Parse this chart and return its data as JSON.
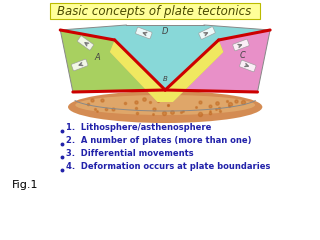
{
  "title": "Basic concepts of plate tectonics",
  "title_color": "#4a4a00",
  "title_bg": "#ffff99",
  "title_fontsize": 8.5,
  "bullet_items": [
    "1.  Lithosphere/asthenosphere",
    "2.  A number of plates (more than one)",
    "3.  Differential movements",
    "4.  Deformation occurs at plate boundaries"
  ],
  "bullet_color": "#2222aa",
  "bullet_fontsize": 6.0,
  "fig1_label": "Fig.1",
  "fig1_color": "#000000",
  "bg_color": "#ffffff",
  "plate_green": "#a8d060",
  "plate_cyan": "#88d8d8",
  "plate_pink": "#e890c8",
  "plate_yellow": "#f0e860",
  "plate_hatch": "#b8a878",
  "boundary_color": "#cc0000",
  "asth_color1": "#d08040",
  "asth_color2": "#e8b878",
  "outer_line_color": "#888888",
  "label_color": "#444444"
}
